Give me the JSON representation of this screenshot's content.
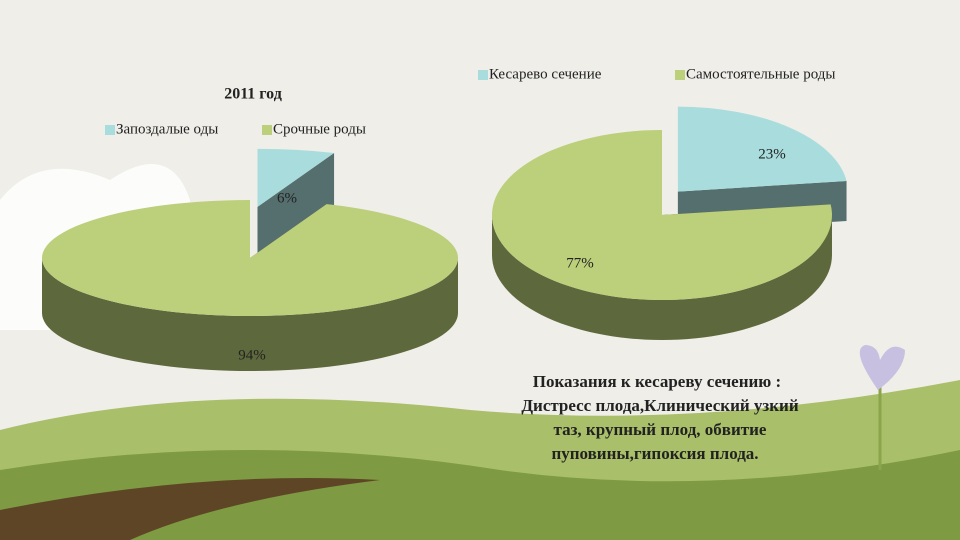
{
  "chart_data": [
    {
      "type": "pie",
      "title": "2011 год",
      "categories": [
        "Запоздалые оды",
        "Срочные роды"
      ],
      "values": [
        6,
        94
      ],
      "value_labels": [
        "6%",
        "94%"
      ],
      "colors": [
        "#a9dcdc",
        "#bccf7a"
      ]
    },
    {
      "type": "pie",
      "categories": [
        "Кесарево сечение",
        "Самостоятельные роды"
      ],
      "values": [
        23,
        77
      ],
      "value_labels": [
        "23%",
        "77%"
      ],
      "colors": [
        "#a9dcdc",
        "#bccf7a"
      ],
      "annotation": [
        "Показания к кесареву сечению :",
        "Дистресс плода,Клинический узкий",
        "таз, крупный  плод, обвитие",
        "пуповины,гипоксия плода."
      ]
    }
  ]
}
